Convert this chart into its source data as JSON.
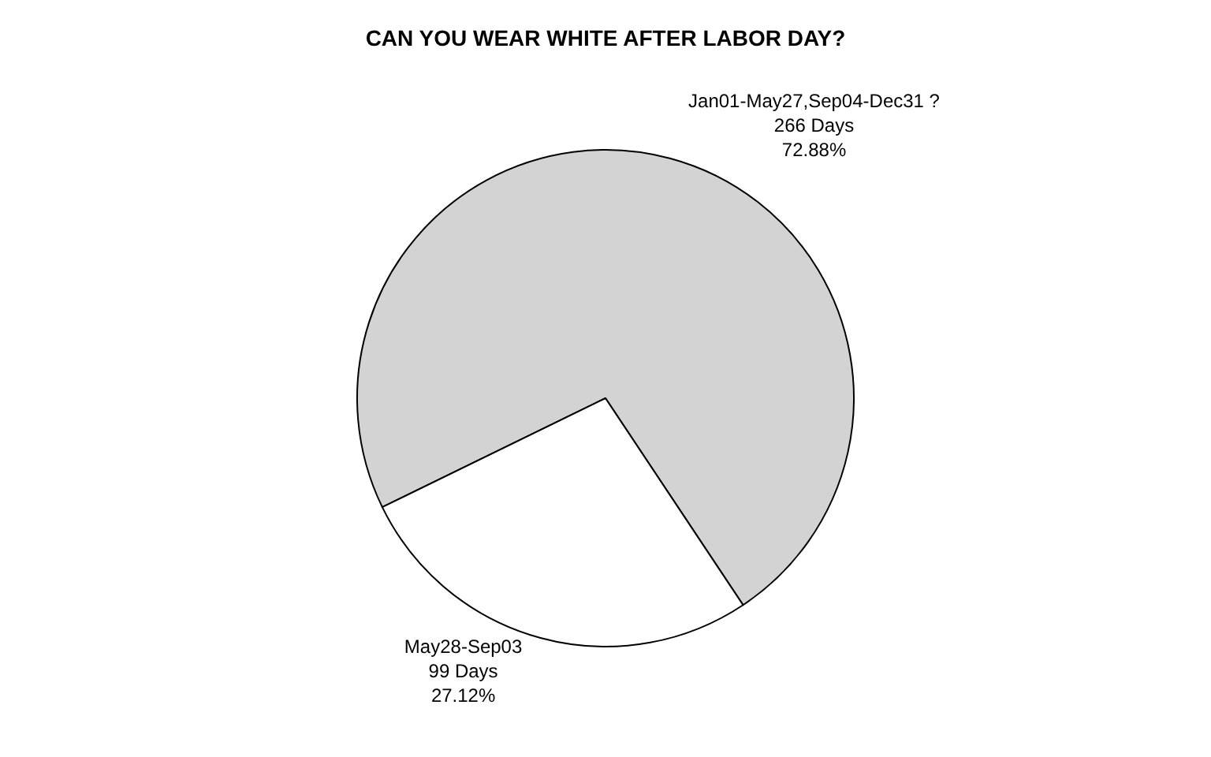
{
  "chart_data": {
    "type": "pie",
    "title": "CAN YOU WEAR WHITE AFTER LABOR DAY?",
    "categories": [
      "Jan01-May27,Sep04-Dec31 ?",
      "May28-Sep03"
    ],
    "values": [
      266,
      99
    ],
    "value_labels": [
      "266 Days\n72.88%",
      "99 Days\n27.12%"
    ],
    "colors": [
      "#d3d3d3",
      "#ffffff"
    ],
    "legend": false
  }
}
